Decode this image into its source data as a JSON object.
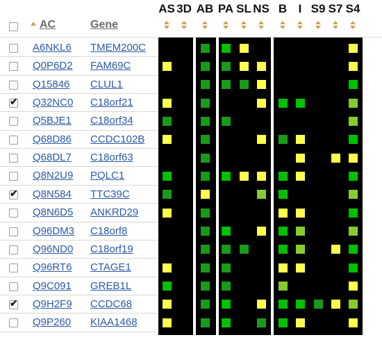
{
  "header": {
    "ac_label": "AC",
    "gene_label": "Gene",
    "feature_columns": [
      "AS",
      "3D",
      "AB",
      "PA",
      "SL",
      "NS",
      "B",
      "I",
      "S9",
      "S7",
      "S4"
    ]
  },
  "colors": {
    "Y": "#ffff4d",
    "G": "#00c000",
    "D": "#1a9a1a",
    "L": "#86cc2e",
    "link": "#2b59a8"
  },
  "rows": [
    {
      "ac": "A6NKL6",
      "gene": "TMEM200C",
      "checked": false,
      "cells": [
        "",
        "",
        "D",
        "G",
        "Y",
        "",
        "",
        "",
        "",
        "",
        "Y"
      ]
    },
    {
      "ac": "Q0P6D2",
      "gene": "FAM69C",
      "checked": false,
      "cells": [
        "Y",
        "",
        "D",
        "D",
        "Y",
        "Y",
        "",
        "",
        "",
        "",
        "Y"
      ]
    },
    {
      "ac": "Q15846",
      "gene": "CLUL1",
      "checked": false,
      "cells": [
        "",
        "",
        "D",
        "D",
        "D",
        "Y",
        "",
        "",
        "",
        "",
        "G"
      ]
    },
    {
      "ac": "Q32NC0",
      "gene": "C18orf21",
      "checked": true,
      "cells": [
        "Y",
        "",
        "D",
        "",
        "",
        "Y",
        "G",
        "G",
        "",
        "",
        "L"
      ]
    },
    {
      "ac": "Q5BJE1",
      "gene": "C18orf34",
      "checked": false,
      "cells": [
        "D",
        "",
        "D",
        "D",
        "",
        "",
        "",
        "",
        "",
        "",
        "L"
      ]
    },
    {
      "ac": "Q68D86",
      "gene": "CCDC102B",
      "checked": false,
      "cells": [
        "Y",
        "",
        "D",
        "",
        "",
        "Y",
        "D",
        "Y",
        "",
        "",
        "G"
      ]
    },
    {
      "ac": "Q68DL7",
      "gene": "C18orf63",
      "checked": false,
      "cells": [
        "",
        "",
        "D",
        "",
        "",
        "",
        "",
        "Y",
        "",
        "Y",
        "Y"
      ]
    },
    {
      "ac": "Q8N2U9",
      "gene": "PQLC1",
      "checked": false,
      "cells": [
        "G",
        "",
        "D",
        "G",
        "Y",
        "Y",
        "G",
        "Y",
        "",
        "",
        "G"
      ]
    },
    {
      "ac": "Q8N584",
      "gene": "TTC39C",
      "checked": true,
      "cells": [
        "D",
        "",
        "Y",
        "",
        "",
        "L",
        "G",
        "",
        "",
        "",
        "L"
      ]
    },
    {
      "ac": "Q8N6D5",
      "gene": "ANKRD29",
      "checked": false,
      "cells": [
        "Y",
        "",
        "D",
        "",
        "",
        "",
        "Y",
        "Y",
        "",
        "",
        "G"
      ]
    },
    {
      "ac": "Q96DM3",
      "gene": "C18orf8",
      "checked": false,
      "cells": [
        "",
        "",
        "D",
        "G",
        "",
        "Y",
        "G",
        "L",
        "",
        "",
        "L"
      ]
    },
    {
      "ac": "Q96ND0",
      "gene": "C18orf19",
      "checked": false,
      "cells": [
        "",
        "",
        "D",
        "D",
        "D",
        "",
        "G",
        "L",
        "",
        "Y",
        "G"
      ]
    },
    {
      "ac": "Q96RT6",
      "gene": "CTAGE1",
      "checked": false,
      "cells": [
        "Y",
        "",
        "D",
        "D",
        "",
        "",
        "Y",
        "Y",
        "",
        "",
        "G"
      ]
    },
    {
      "ac": "Q9C091",
      "gene": "GREB1L",
      "checked": false,
      "cells": [
        "G",
        "",
        "D",
        "D",
        "",
        "",
        "L",
        "",
        "",
        "",
        "Y"
      ]
    },
    {
      "ac": "Q9H2F9",
      "gene": "CCDC68",
      "checked": true,
      "cells": [
        "Y",
        "",
        "D",
        "G",
        "",
        "Y",
        "G",
        "G",
        "D",
        "Y",
        "L"
      ]
    },
    {
      "ac": "Q9P260",
      "gene": "KIAA1468",
      "checked": false,
      "cells": [
        "Y",
        "",
        "D",
        "G",
        "",
        "D",
        "G",
        "Y",
        "",
        "",
        "Y"
      ]
    }
  ]
}
